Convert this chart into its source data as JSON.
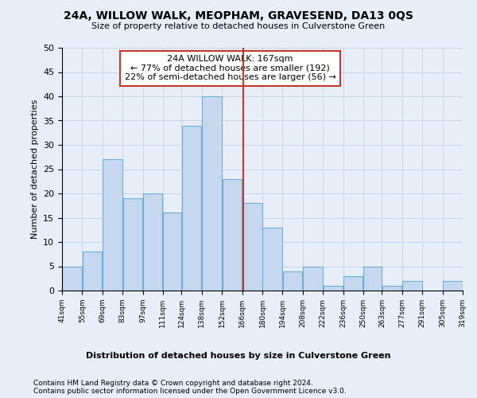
{
  "title": "24A, WILLOW WALK, MEOPHAM, GRAVESEND, DA13 0QS",
  "subtitle": "Size of property relative to detached houses in Culverstone Green",
  "xlabel_bottom": "Distribution of detached houses by size in Culverstone Green",
  "ylabel": "Number of detached properties",
  "footer_line1": "Contains HM Land Registry data © Crown copyright and database right 2024.",
  "footer_line2": "Contains public sector information licensed under the Open Government Licence v3.0.",
  "bar_edges": [
    41,
    55,
    69,
    83,
    97,
    111,
    124,
    138,
    152,
    166,
    180,
    194,
    208,
    222,
    236,
    250,
    263,
    277,
    291,
    305,
    319
  ],
  "bar_heights": [
    5,
    8,
    27,
    19,
    20,
    16,
    34,
    40,
    23,
    18,
    13,
    4,
    5,
    1,
    3,
    5,
    1,
    2,
    0,
    2
  ],
  "bar_color": "#c5d8ef",
  "bar_edgecolor": "#6baed6",
  "property_value": 167,
  "vline_color": "#c0392b",
  "annotation_text": "24A WILLOW WALK: 167sqm\n← 77% of detached houses are smaller (192)\n22% of semi-detached houses are larger (56) →",
  "annotation_box_edgecolor": "#c0392b",
  "annotation_box_facecolor": "white",
  "ylim": [
    0,
    50
  ],
  "yticks": [
    0,
    5,
    10,
    15,
    20,
    25,
    30,
    35,
    40,
    45,
    50
  ],
  "grid_color": "#c8d4e8",
  "background_color": "#e8eef8",
  "plot_background": "#e8eef8",
  "tick_labels": [
    "41sqm",
    "55sqm",
    "69sqm",
    "83sqm",
    "97sqm",
    "111sqm",
    "124sqm",
    "138sqm",
    "152sqm",
    "166sqm",
    "180sqm",
    "194sqm",
    "208sqm",
    "222sqm",
    "236sqm",
    "250sqm",
    "263sqm",
    "277sqm",
    "291sqm",
    "305sqm",
    "319sqm"
  ]
}
